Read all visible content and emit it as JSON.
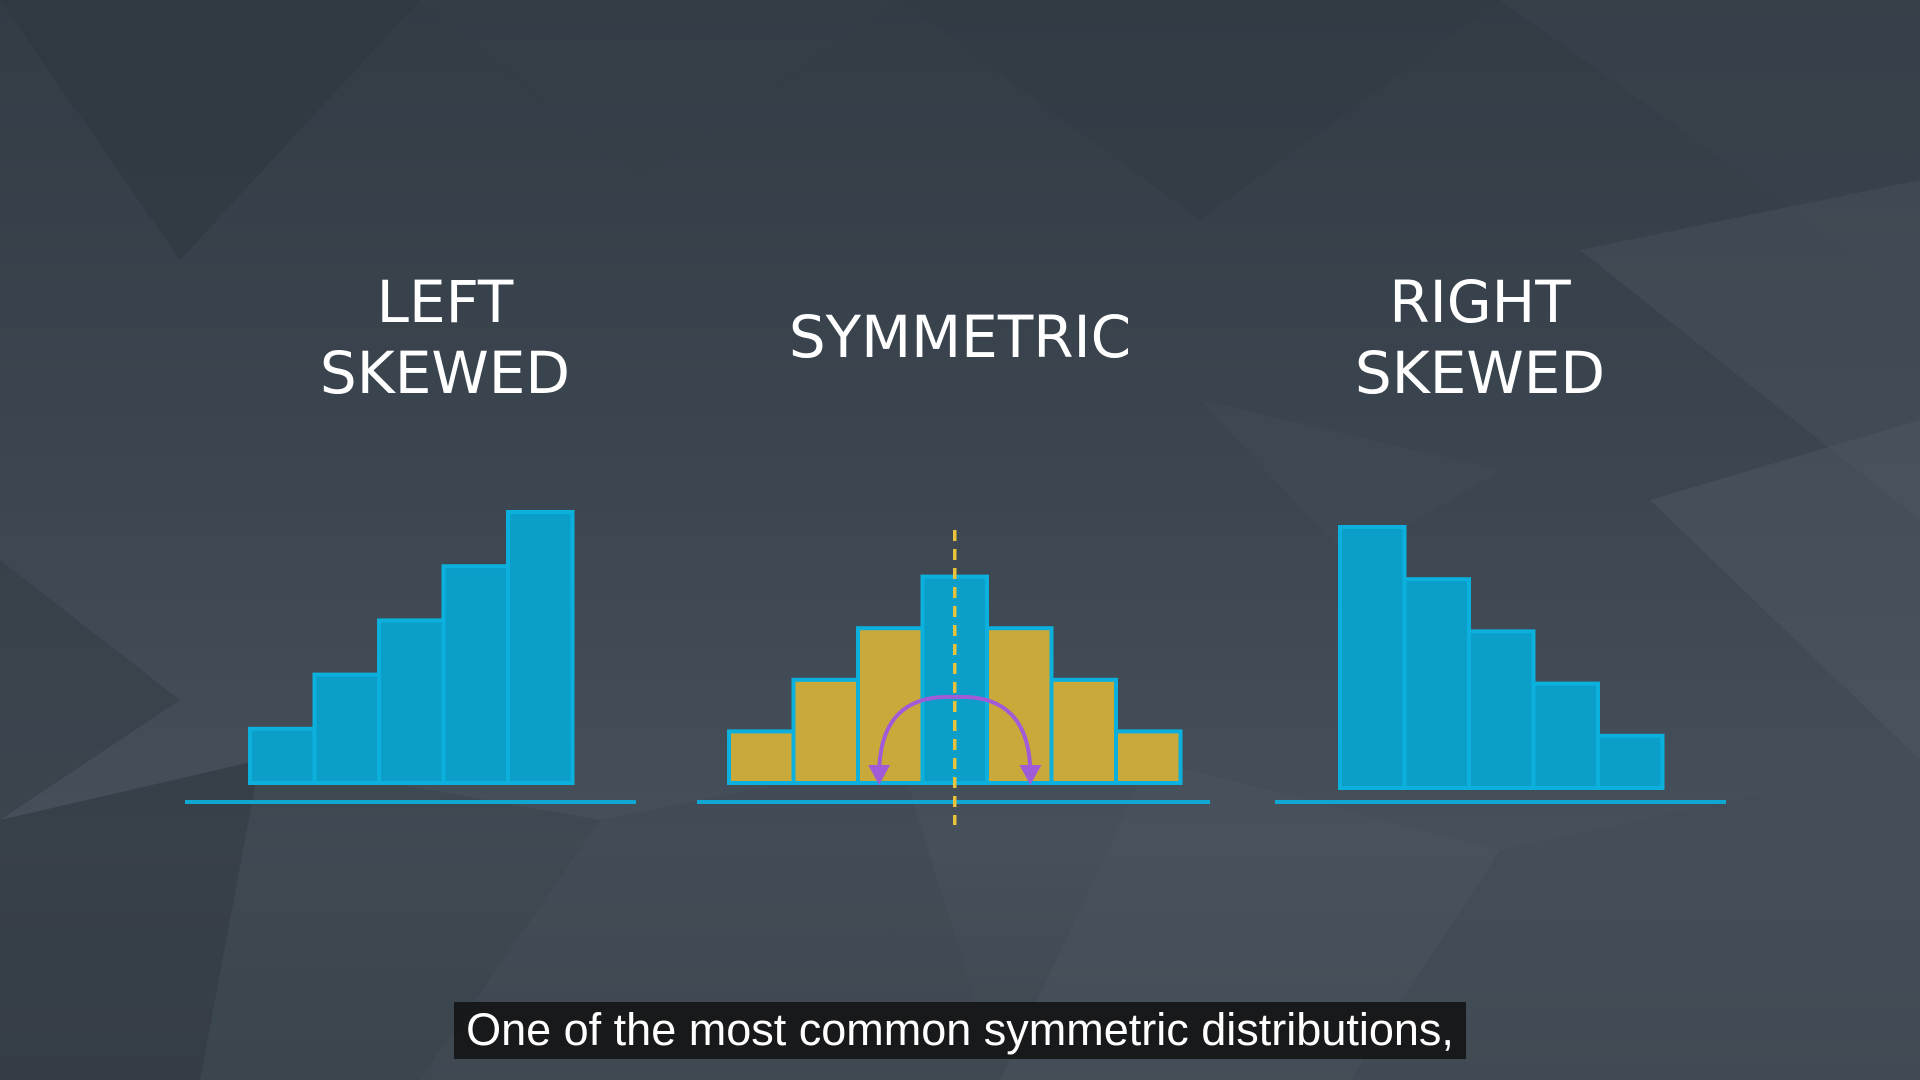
{
  "colors": {
    "background": "#3a434d",
    "bar_blue": "#0a9ec9",
    "bar_blue_edge": "#0bb0dc",
    "bar_gold": "#c9a93a",
    "axis_line": "#11a7d3",
    "center_line": "#e8c23a",
    "arrow": "#a05cd6",
    "text": "#ffffff",
    "caption_bg": "#121212"
  },
  "caption": "One of the most common symmetric distributions,",
  "chart_data": [
    {
      "type": "bar",
      "title_lines": [
        "LEFT",
        "SKEWED"
      ],
      "values": [
        1,
        2,
        3,
        4,
        5
      ],
      "highlight": [],
      "axis": "baseline"
    },
    {
      "type": "bar",
      "title_lines": [
        "SYMMETRIC"
      ],
      "values": [
        1,
        2,
        3,
        4,
        3,
        2,
        1
      ],
      "highlight": [
        3
      ],
      "annotations": [
        "dashed center line of symmetry",
        "purple arc arrows showing mirror symmetry"
      ],
      "axis": "baseline"
    },
    {
      "type": "bar",
      "title_lines": [
        "RIGHT",
        "SKEWED"
      ],
      "values": [
        5,
        4,
        3,
        2,
        1
      ],
      "highlight": [],
      "axis": "baseline"
    }
  ]
}
